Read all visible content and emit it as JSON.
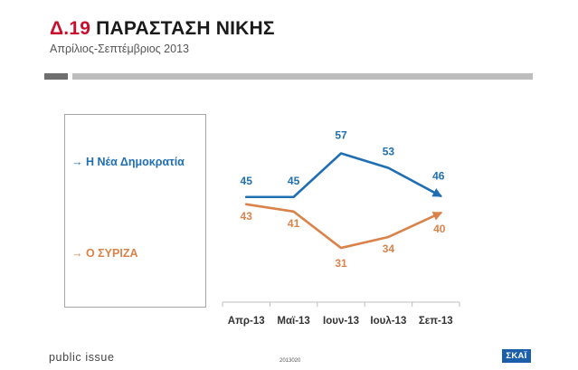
{
  "header": {
    "title_num": "Δ.19",
    "title_text": "ΠΑΡΑΣΤΑΣΗ ΝΙΚΗΣ",
    "subtitle": "Απρίλιος-Σεπτέμβριος 2013"
  },
  "footer": {
    "brand": "public issue",
    "code": "2013020",
    "logo": "ΣΚΑΪ"
  },
  "colors": {
    "nd": "#1f6fb2",
    "syriza": "#d9834b",
    "axis": "#bfbfbf",
    "accent": "#c8102e"
  },
  "chart_data": {
    "type": "line",
    "categories": [
      "Απρ-13",
      "Μαϊ-13",
      "Ιουν-13",
      "Ιουλ-13",
      "Σεπ-13"
    ],
    "series": [
      {
        "name": "Η Νέα Δημοκρατία",
        "values": [
          45,
          45,
          57,
          53,
          46
        ]
      },
      {
        "name": "Ο ΣΥΡΙΖΑ",
        "values": [
          43,
          41,
          31,
          34,
          40
        ]
      }
    ],
    "legend": "left",
    "grid": false
  }
}
